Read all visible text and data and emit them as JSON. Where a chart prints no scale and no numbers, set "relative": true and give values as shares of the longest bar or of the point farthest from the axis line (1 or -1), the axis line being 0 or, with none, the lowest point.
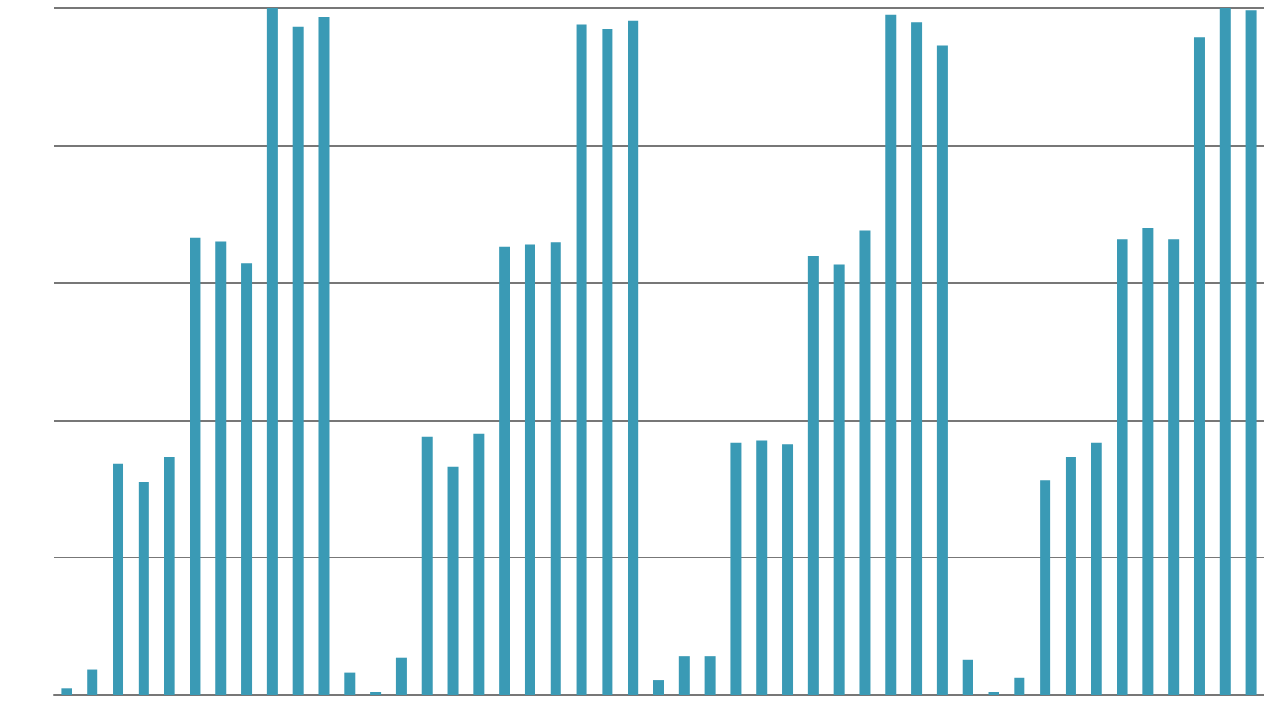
{
  "chart_data": {
    "type": "bar",
    "relative": true,
    "grid": "y",
    "color": "#3a9ab5",
    "categories": [
      null,
      null,
      null,
      null,
      null,
      null,
      null,
      null,
      null,
      null,
      null,
      null,
      null,
      null,
      null,
      null,
      null,
      null,
      null,
      null,
      null,
      null,
      null,
      null,
      null,
      null,
      null,
      null,
      null,
      null,
      null,
      null,
      null,
      null,
      null,
      null,
      null,
      null,
      null,
      null,
      null,
      null,
      null,
      null,
      null,
      null,
      null
    ],
    "values": [
      0.01,
      0.037,
      0.337,
      0.31,
      0.347,
      0.666,
      0.66,
      0.629,
      1,
      0.973,
      0.987,
      0.033,
      0.004,
      0.055,
      0.376,
      0.332,
      0.38,
      0.653,
      0.656,
      0.659,
      0.976,
      0.97,
      0.982,
      0.022,
      0.057,
      0.057,
      0.367,
      0.37,
      0.365,
      0.639,
      0.626,
      0.677,
      0.99,
      0.979,
      0.946,
      0.051,
      0.004,
      0.025,
      0.313,
      0.346,
      0.367,
      0.663,
      0.68,
      0.663,
      0.958,
      1,
      0.997
    ]
  }
}
